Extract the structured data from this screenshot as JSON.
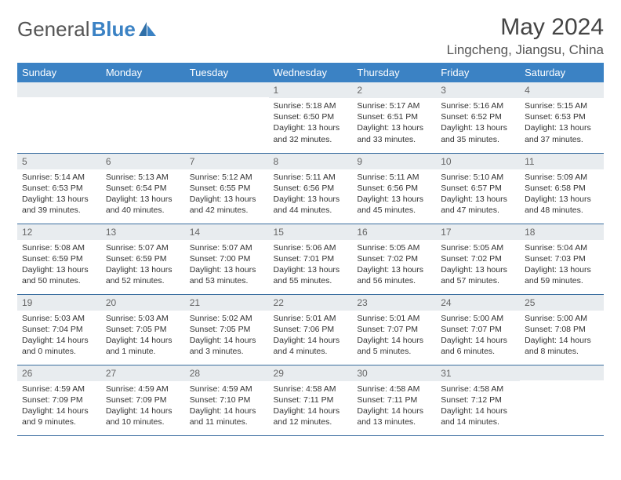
{
  "brand": {
    "name_gray": "General",
    "name_blue": "Blue"
  },
  "title": "May 2024",
  "location": "Lingcheng, Jiangsu, China",
  "day_headers": [
    "Sunday",
    "Monday",
    "Tuesday",
    "Wednesday",
    "Thursday",
    "Friday",
    "Saturday"
  ],
  "colors": {
    "header_bg": "#3b82c4",
    "header_text": "#ffffff",
    "daynum_bg": "#e8ecef",
    "border": "#3b6ea0",
    "text": "#333333"
  },
  "weeks": [
    [
      {
        "n": "",
        "sunrise": "",
        "sunset": "",
        "daylight": ""
      },
      {
        "n": "",
        "sunrise": "",
        "sunset": "",
        "daylight": ""
      },
      {
        "n": "",
        "sunrise": "",
        "sunset": "",
        "daylight": ""
      },
      {
        "n": "1",
        "sunrise": "Sunrise: 5:18 AM",
        "sunset": "Sunset: 6:50 PM",
        "daylight": "Daylight: 13 hours and 32 minutes."
      },
      {
        "n": "2",
        "sunrise": "Sunrise: 5:17 AM",
        "sunset": "Sunset: 6:51 PM",
        "daylight": "Daylight: 13 hours and 33 minutes."
      },
      {
        "n": "3",
        "sunrise": "Sunrise: 5:16 AM",
        "sunset": "Sunset: 6:52 PM",
        "daylight": "Daylight: 13 hours and 35 minutes."
      },
      {
        "n": "4",
        "sunrise": "Sunrise: 5:15 AM",
        "sunset": "Sunset: 6:53 PM",
        "daylight": "Daylight: 13 hours and 37 minutes."
      }
    ],
    [
      {
        "n": "5",
        "sunrise": "Sunrise: 5:14 AM",
        "sunset": "Sunset: 6:53 PM",
        "daylight": "Daylight: 13 hours and 39 minutes."
      },
      {
        "n": "6",
        "sunrise": "Sunrise: 5:13 AM",
        "sunset": "Sunset: 6:54 PM",
        "daylight": "Daylight: 13 hours and 40 minutes."
      },
      {
        "n": "7",
        "sunrise": "Sunrise: 5:12 AM",
        "sunset": "Sunset: 6:55 PM",
        "daylight": "Daylight: 13 hours and 42 minutes."
      },
      {
        "n": "8",
        "sunrise": "Sunrise: 5:11 AM",
        "sunset": "Sunset: 6:56 PM",
        "daylight": "Daylight: 13 hours and 44 minutes."
      },
      {
        "n": "9",
        "sunrise": "Sunrise: 5:11 AM",
        "sunset": "Sunset: 6:56 PM",
        "daylight": "Daylight: 13 hours and 45 minutes."
      },
      {
        "n": "10",
        "sunrise": "Sunrise: 5:10 AM",
        "sunset": "Sunset: 6:57 PM",
        "daylight": "Daylight: 13 hours and 47 minutes."
      },
      {
        "n": "11",
        "sunrise": "Sunrise: 5:09 AM",
        "sunset": "Sunset: 6:58 PM",
        "daylight": "Daylight: 13 hours and 48 minutes."
      }
    ],
    [
      {
        "n": "12",
        "sunrise": "Sunrise: 5:08 AM",
        "sunset": "Sunset: 6:59 PM",
        "daylight": "Daylight: 13 hours and 50 minutes."
      },
      {
        "n": "13",
        "sunrise": "Sunrise: 5:07 AM",
        "sunset": "Sunset: 6:59 PM",
        "daylight": "Daylight: 13 hours and 52 minutes."
      },
      {
        "n": "14",
        "sunrise": "Sunrise: 5:07 AM",
        "sunset": "Sunset: 7:00 PM",
        "daylight": "Daylight: 13 hours and 53 minutes."
      },
      {
        "n": "15",
        "sunrise": "Sunrise: 5:06 AM",
        "sunset": "Sunset: 7:01 PM",
        "daylight": "Daylight: 13 hours and 55 minutes."
      },
      {
        "n": "16",
        "sunrise": "Sunrise: 5:05 AM",
        "sunset": "Sunset: 7:02 PM",
        "daylight": "Daylight: 13 hours and 56 minutes."
      },
      {
        "n": "17",
        "sunrise": "Sunrise: 5:05 AM",
        "sunset": "Sunset: 7:02 PM",
        "daylight": "Daylight: 13 hours and 57 minutes."
      },
      {
        "n": "18",
        "sunrise": "Sunrise: 5:04 AM",
        "sunset": "Sunset: 7:03 PM",
        "daylight": "Daylight: 13 hours and 59 minutes."
      }
    ],
    [
      {
        "n": "19",
        "sunrise": "Sunrise: 5:03 AM",
        "sunset": "Sunset: 7:04 PM",
        "daylight": "Daylight: 14 hours and 0 minutes."
      },
      {
        "n": "20",
        "sunrise": "Sunrise: 5:03 AM",
        "sunset": "Sunset: 7:05 PM",
        "daylight": "Daylight: 14 hours and 1 minute."
      },
      {
        "n": "21",
        "sunrise": "Sunrise: 5:02 AM",
        "sunset": "Sunset: 7:05 PM",
        "daylight": "Daylight: 14 hours and 3 minutes."
      },
      {
        "n": "22",
        "sunrise": "Sunrise: 5:01 AM",
        "sunset": "Sunset: 7:06 PM",
        "daylight": "Daylight: 14 hours and 4 minutes."
      },
      {
        "n": "23",
        "sunrise": "Sunrise: 5:01 AM",
        "sunset": "Sunset: 7:07 PM",
        "daylight": "Daylight: 14 hours and 5 minutes."
      },
      {
        "n": "24",
        "sunrise": "Sunrise: 5:00 AM",
        "sunset": "Sunset: 7:07 PM",
        "daylight": "Daylight: 14 hours and 6 minutes."
      },
      {
        "n": "25",
        "sunrise": "Sunrise: 5:00 AM",
        "sunset": "Sunset: 7:08 PM",
        "daylight": "Daylight: 14 hours and 8 minutes."
      }
    ],
    [
      {
        "n": "26",
        "sunrise": "Sunrise: 4:59 AM",
        "sunset": "Sunset: 7:09 PM",
        "daylight": "Daylight: 14 hours and 9 minutes."
      },
      {
        "n": "27",
        "sunrise": "Sunrise: 4:59 AM",
        "sunset": "Sunset: 7:09 PM",
        "daylight": "Daylight: 14 hours and 10 minutes."
      },
      {
        "n": "28",
        "sunrise": "Sunrise: 4:59 AM",
        "sunset": "Sunset: 7:10 PM",
        "daylight": "Daylight: 14 hours and 11 minutes."
      },
      {
        "n": "29",
        "sunrise": "Sunrise: 4:58 AM",
        "sunset": "Sunset: 7:11 PM",
        "daylight": "Daylight: 14 hours and 12 minutes."
      },
      {
        "n": "30",
        "sunrise": "Sunrise: 4:58 AM",
        "sunset": "Sunset: 7:11 PM",
        "daylight": "Daylight: 14 hours and 13 minutes."
      },
      {
        "n": "31",
        "sunrise": "Sunrise: 4:58 AM",
        "sunset": "Sunset: 7:12 PM",
        "daylight": "Daylight: 14 hours and 14 minutes."
      },
      {
        "n": "",
        "sunrise": "",
        "sunset": "",
        "daylight": ""
      }
    ]
  ]
}
